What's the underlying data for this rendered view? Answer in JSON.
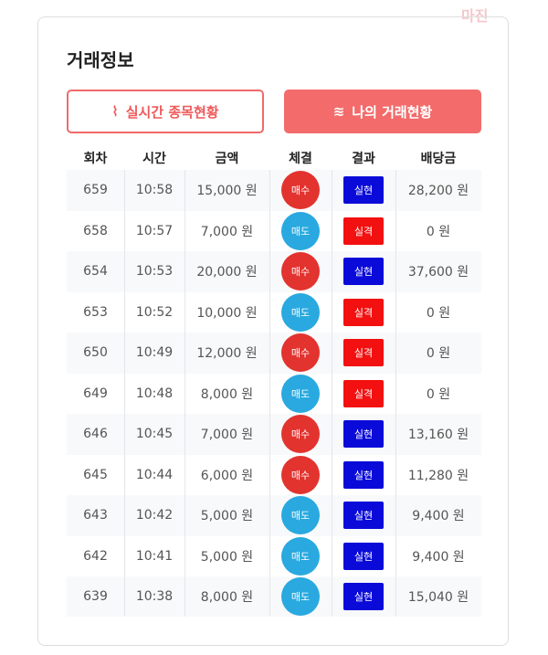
{
  "watermark": "마진",
  "title": "거래정보",
  "buttons": [
    "실시간 종목현황",
    "나의 거래현황"
  ],
  "table": {
    "headers": [
      "회차",
      "시간",
      "금액",
      "체결",
      "결과",
      "배당금"
    ],
    "rows": [
      [
        "659",
        "10:58",
        "15,000 원",
        "매수",
        "실현",
        "28,200 원"
      ],
      [
        "658",
        "10:57",
        "7,000 원",
        "매도",
        "실격",
        "0 원"
      ],
      [
        "654",
        "10:53",
        "20,000 원",
        "매수",
        "실현",
        "37,600 원"
      ],
      [
        "653",
        "10:52",
        "10,000 원",
        "매도",
        "실격",
        "0 원"
      ],
      [
        "650",
        "10:49",
        "12,000 원",
        "매수",
        "실격",
        "0 원"
      ],
      [
        "649",
        "10:48",
        "8,000 원",
        "매도",
        "실격",
        "0 원"
      ],
      [
        "646",
        "10:45",
        "7,000 원",
        "매수",
        "실현",
        "13,160 원"
      ],
      [
        "645",
        "10:44",
        "6,000 원",
        "매수",
        "실현",
        "11,280 원"
      ],
      [
        "643",
        "10:42",
        "5,000 원",
        "매도",
        "실현",
        "9,400 원"
      ],
      [
        "642",
        "10:41",
        "5,000 원",
        "매도",
        "실현",
        "9,400 원"
      ],
      [
        "639",
        "10:38",
        "8,000 원",
        "매도",
        "실현",
        "15,040 원"
      ]
    ],
    "badge_colors": {
      "매수": "#e2332f",
      "매도": "#29a9df",
      "실현": "#0b0bd9",
      "실격": "#f21010"
    }
  }
}
